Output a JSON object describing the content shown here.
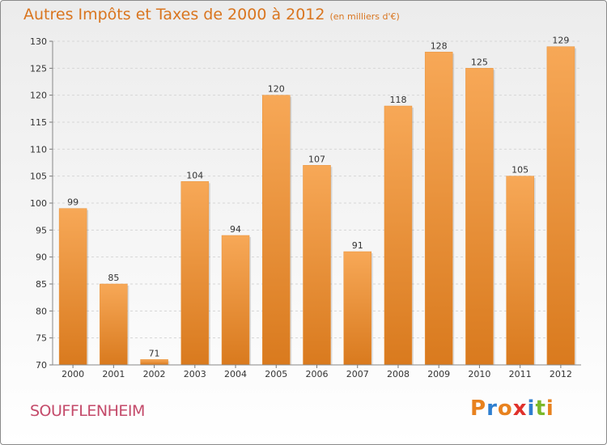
{
  "header": {
    "title": "Autres Impôts et Taxes de 2000 à 2012",
    "unit": "(en milliers d'€)"
  },
  "footer": {
    "town": "SOUFFLENHEIM",
    "logo": [
      "P",
      "r",
      "o",
      "x",
      "i",
      "t",
      "i"
    ],
    "logo_colors": [
      "#e8821f",
      "#2f7fd0",
      "#e8821f",
      "#e0312b",
      "#2f7fd0",
      "#7ab829",
      "#e8821f"
    ]
  },
  "chart_data": {
    "type": "bar",
    "categories": [
      "2000",
      "2001",
      "2002",
      "2003",
      "2004",
      "2005",
      "2006",
      "2007",
      "2008",
      "2009",
      "2010",
      "2011",
      "2012"
    ],
    "values": [
      99,
      85,
      71,
      104,
      94,
      120,
      107,
      91,
      118,
      128,
      125,
      105,
      129
    ],
    "ylim": [
      70,
      130
    ],
    "yticks": [
      70,
      75,
      80,
      85,
      90,
      95,
      100,
      105,
      110,
      115,
      120,
      125,
      130
    ],
    "grid": true,
    "bar_color_top": "#f7a857",
    "bar_color_bottom": "#d97a1e",
    "data_labels": true
  }
}
